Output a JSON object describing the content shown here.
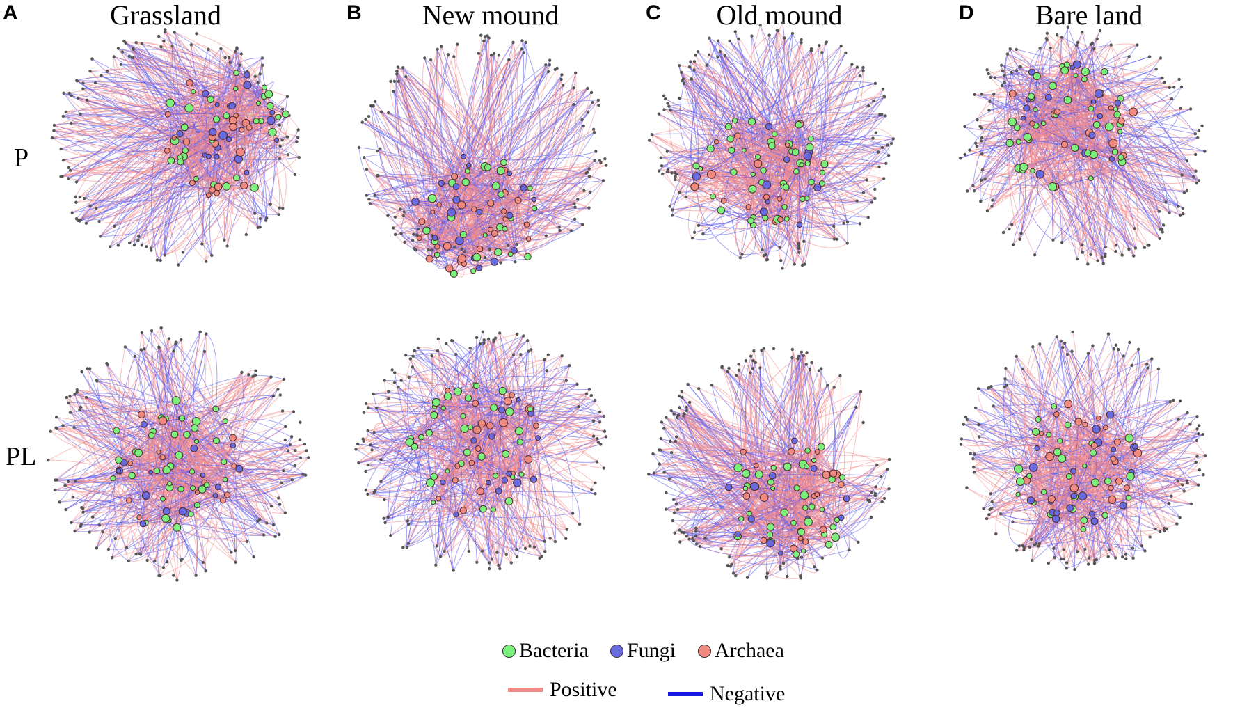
{
  "panels": [
    {
      "letter": "A",
      "title": "Grassland"
    },
    {
      "letter": "B",
      "title": "New mound"
    },
    {
      "letter": "C",
      "title": "Old mound"
    },
    {
      "letter": "D",
      "title": "Bare land"
    }
  ],
  "rows": [
    {
      "label": "P"
    },
    {
      "label": "PL"
    }
  ],
  "legend": {
    "nodes": [
      {
        "label": "Bacteria",
        "color": "#7CF07C"
      },
      {
        "label": "Fungi",
        "color": "#6A6AE0"
      },
      {
        "label": "Archaea",
        "color": "#F08A80"
      }
    ],
    "edges": [
      {
        "label": "Positive",
        "color": "#F48A8A"
      },
      {
        "label": "Negative",
        "color": "#1A1AE6"
      }
    ]
  }
}
